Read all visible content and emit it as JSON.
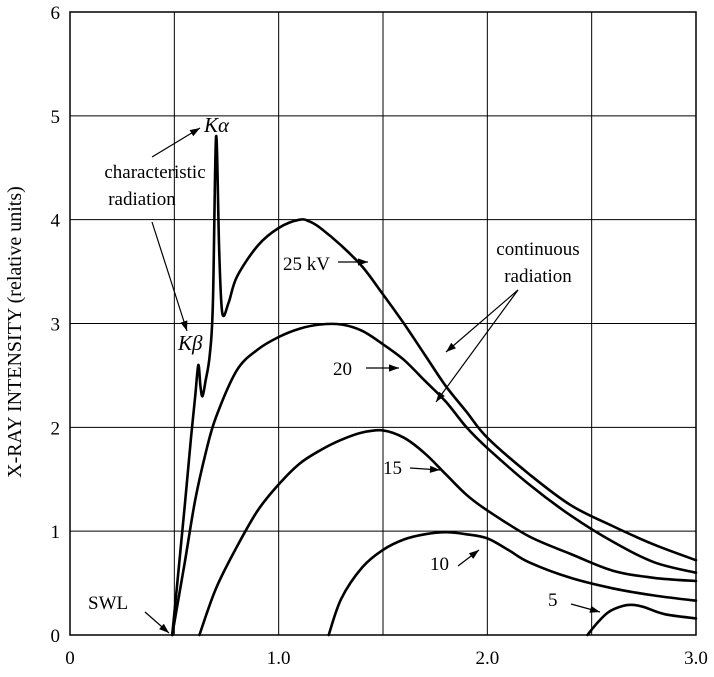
{
  "chart_data": {
    "type": "line",
    "title": "",
    "xlabel": "",
    "ylabel": "X-RAY INTENSITY (relative units)",
    "xlim": [
      0,
      3.0
    ],
    "ylim": [
      0,
      6
    ],
    "x_ticks": [
      "0",
      "1.0",
      "2.0",
      "3.0"
    ],
    "x_tick_values": [
      0,
      1,
      2,
      3
    ],
    "y_ticks": [
      "0",
      "1",
      "2",
      "3",
      "4",
      "5",
      "6"
    ],
    "y_tick_values": [
      0,
      1,
      2,
      3,
      4,
      5,
      6
    ],
    "grid": true,
    "grid_x_step": 0.5,
    "grid_y_step": 1,
    "series": [
      {
        "name": "25 kV",
        "points": [
          [
            0.49,
            0
          ],
          [
            0.52,
            0.62
          ],
          [
            0.55,
            1.25
          ],
          [
            0.58,
            1.9
          ],
          [
            0.6,
            2.3
          ],
          [
            0.615,
            2.6
          ],
          [
            0.625,
            2.4
          ],
          [
            0.635,
            2.3
          ],
          [
            0.65,
            2.45
          ],
          [
            0.67,
            2.7
          ],
          [
            0.685,
            3.2
          ],
          [
            0.7,
            4.8
          ],
          [
            0.715,
            3.7
          ],
          [
            0.73,
            3.1
          ],
          [
            0.76,
            3.2
          ],
          [
            0.8,
            3.45
          ],
          [
            0.9,
            3.75
          ],
          [
            1.0,
            3.92
          ],
          [
            1.1,
            4.0
          ],
          [
            1.15,
            3.98
          ],
          [
            1.2,
            3.92
          ],
          [
            1.3,
            3.75
          ],
          [
            1.4,
            3.55
          ],
          [
            1.5,
            3.28
          ],
          [
            1.6,
            3.0
          ],
          [
            1.7,
            2.7
          ],
          [
            1.8,
            2.4
          ],
          [
            1.9,
            2.15
          ],
          [
            2.0,
            1.9
          ],
          [
            2.2,
            1.55
          ],
          [
            2.4,
            1.25
          ],
          [
            2.6,
            1.05
          ],
          [
            2.8,
            0.87
          ],
          [
            3.0,
            0.72
          ]
        ]
      },
      {
        "name": "20",
        "points": [
          [
            0.49,
            0
          ],
          [
            0.55,
            0.7
          ],
          [
            0.6,
            1.3
          ],
          [
            0.65,
            1.75
          ],
          [
            0.7,
            2.1
          ],
          [
            0.8,
            2.55
          ],
          [
            0.9,
            2.75
          ],
          [
            1.0,
            2.87
          ],
          [
            1.1,
            2.95
          ],
          [
            1.2,
            2.99
          ],
          [
            1.3,
            2.99
          ],
          [
            1.4,
            2.93
          ],
          [
            1.5,
            2.8
          ],
          [
            1.6,
            2.65
          ],
          [
            1.7,
            2.45
          ],
          [
            1.8,
            2.25
          ],
          [
            1.9,
            2.0
          ],
          [
            2.0,
            1.8
          ],
          [
            2.2,
            1.45
          ],
          [
            2.4,
            1.15
          ],
          [
            2.6,
            0.9
          ],
          [
            2.8,
            0.7
          ],
          [
            3.0,
            0.6
          ]
        ]
      },
      {
        "name": "15",
        "points": [
          [
            0.62,
            0
          ],
          [
            0.7,
            0.45
          ],
          [
            0.8,
            0.85
          ],
          [
            0.9,
            1.2
          ],
          [
            1.0,
            1.45
          ],
          [
            1.1,
            1.65
          ],
          [
            1.2,
            1.78
          ],
          [
            1.3,
            1.88
          ],
          [
            1.4,
            1.95
          ],
          [
            1.5,
            1.97
          ],
          [
            1.6,
            1.9
          ],
          [
            1.7,
            1.75
          ],
          [
            1.8,
            1.55
          ],
          [
            1.9,
            1.35
          ],
          [
            2.0,
            1.2
          ],
          [
            2.2,
            0.95
          ],
          [
            2.4,
            0.78
          ],
          [
            2.6,
            0.62
          ],
          [
            2.8,
            0.55
          ],
          [
            3.0,
            0.52
          ]
        ]
      },
      {
        "name": "10",
        "points": [
          [
            1.24,
            0
          ],
          [
            1.3,
            0.35
          ],
          [
            1.4,
            0.65
          ],
          [
            1.5,
            0.82
          ],
          [
            1.6,
            0.92
          ],
          [
            1.7,
            0.97
          ],
          [
            1.8,
            0.99
          ],
          [
            1.9,
            0.97
          ],
          [
            2.0,
            0.93
          ],
          [
            2.1,
            0.82
          ],
          [
            2.2,
            0.7
          ],
          [
            2.4,
            0.55
          ],
          [
            2.6,
            0.45
          ],
          [
            2.8,
            0.38
          ],
          [
            3.0,
            0.33
          ]
        ]
      },
      {
        "name": "5",
        "points": [
          [
            2.48,
            0
          ],
          [
            2.52,
            0.1
          ],
          [
            2.58,
            0.22
          ],
          [
            2.65,
            0.28
          ],
          [
            2.7,
            0.29
          ],
          [
            2.75,
            0.27
          ],
          [
            2.85,
            0.2
          ],
          [
            3.0,
            0.16
          ]
        ]
      }
    ],
    "annotations": [
      {
        "text": "Kα",
        "italic": true
      },
      {
        "text": "characteristic"
      },
      {
        "text": "radiation"
      },
      {
        "text": "Kβ",
        "italic": true
      },
      {
        "text": "25 kV"
      },
      {
        "text": "20"
      },
      {
        "text": "15"
      },
      {
        "text": "10"
      },
      {
        "text": "5"
      },
      {
        "text": "continuous"
      },
      {
        "text": "radiation"
      },
      {
        "text": "SWL"
      }
    ]
  }
}
